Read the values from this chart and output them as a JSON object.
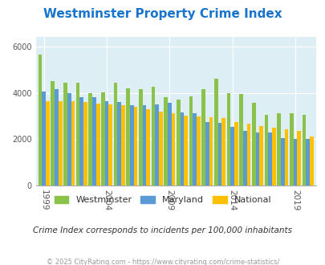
{
  "title": "Westminster Property Crime Index",
  "title_color": "#1874CD",
  "subtitle": "Crime Index corresponds to incidents per 100,000 inhabitants",
  "footer": "© 2025 CityRating.com - https://www.cityrating.com/crime-statistics/",
  "years": [
    1999,
    2000,
    2001,
    2002,
    2003,
    2004,
    2005,
    2006,
    2007,
    2008,
    2009,
    2010,
    2011,
    2012,
    2013,
    2014,
    2015,
    2016,
    2017,
    2018,
    2019,
    2020
  ],
  "westminster": [
    5650,
    4500,
    4450,
    4450,
    4000,
    4020,
    4450,
    4200,
    4150,
    4250,
    3800,
    3700,
    3850,
    4150,
    4600,
    4000,
    3950,
    3550,
    3050,
    3100,
    3100,
    3050
  ],
  "maryland": [
    4050,
    4150,
    4000,
    3800,
    3800,
    3650,
    3600,
    3450,
    3450,
    3500,
    3550,
    3150,
    3100,
    2750,
    2700,
    2520,
    2350,
    2280,
    2280,
    2050,
    2000,
    2020
  ],
  "national": [
    3650,
    3650,
    3650,
    3600,
    3530,
    3500,
    3480,
    3380,
    3300,
    3190,
    3130,
    3030,
    2980,
    2930,
    2920,
    2720,
    2650,
    2570,
    2490,
    2420,
    2360,
    2100
  ],
  "westminster_color": "#8BC34A",
  "maryland_color": "#5B9BD5",
  "national_color": "#FFC000",
  "bg_color": "#ddeef5",
  "yticks": [
    0,
    2000,
    4000,
    6000
  ],
  "xtick_years": [
    1999,
    2004,
    2009,
    2014,
    2019
  ],
  "ylim": [
    0,
    6400
  ]
}
